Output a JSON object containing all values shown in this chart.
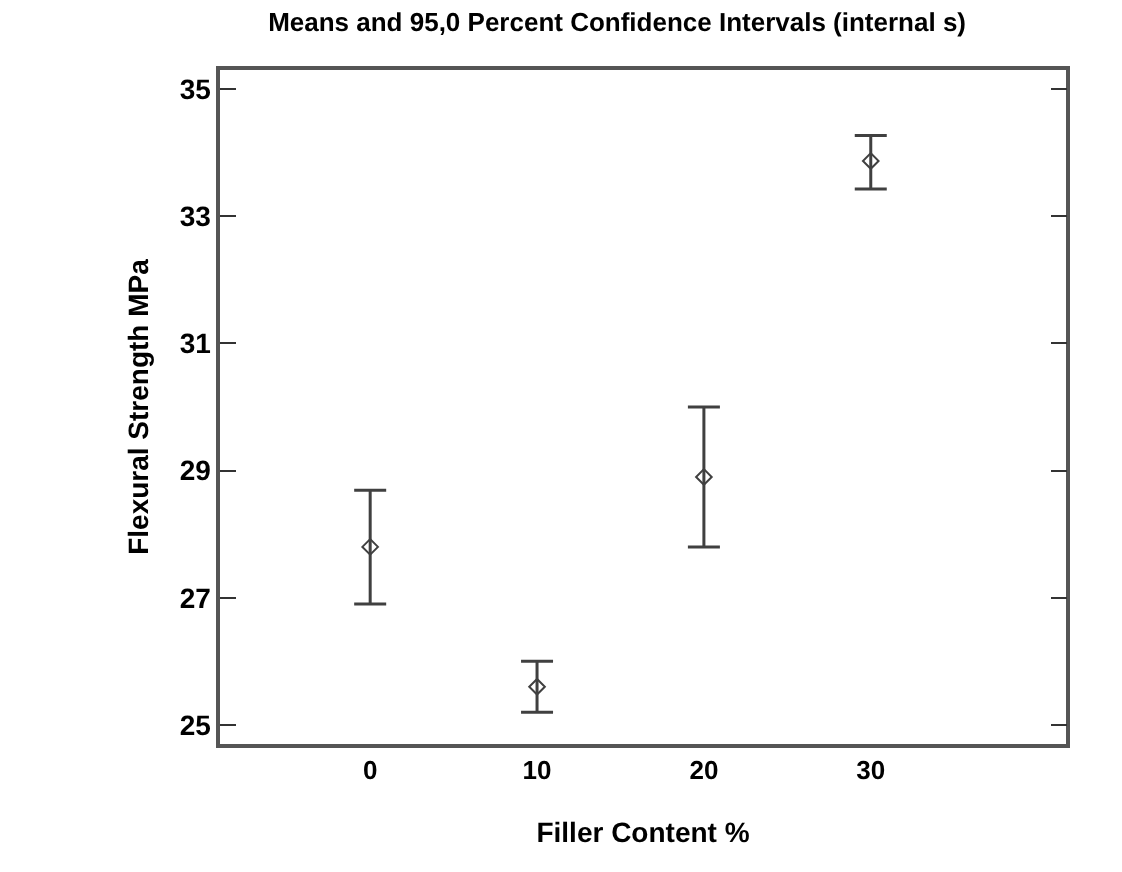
{
  "chart_data": {
    "type": "scatter",
    "title": "Means and 95,0 Percent Confidence Intervals (internal s)",
    "xlabel": "Filler Content %",
    "ylabel": "Flexural Strength MPa",
    "x": [
      0,
      10,
      20,
      30
    ],
    "values": [
      27.8,
      25.6,
      28.9,
      33.87
    ],
    "errors": [
      [
        26.9,
        28.69
      ],
      [
        25.2,
        26.0
      ],
      [
        27.8,
        30.0
      ],
      [
        33.43,
        34.27
      ]
    ],
    "color": "#404040",
    "marker": "diamond",
    "grid": false,
    "xlim": [
      -9,
      41.7
    ],
    "xticks": [
      0,
      10,
      20,
      30
    ],
    "ylim": [
      24.7,
      35.3
    ],
    "yticks": [
      25,
      27,
      29,
      31,
      33,
      35
    ]
  }
}
